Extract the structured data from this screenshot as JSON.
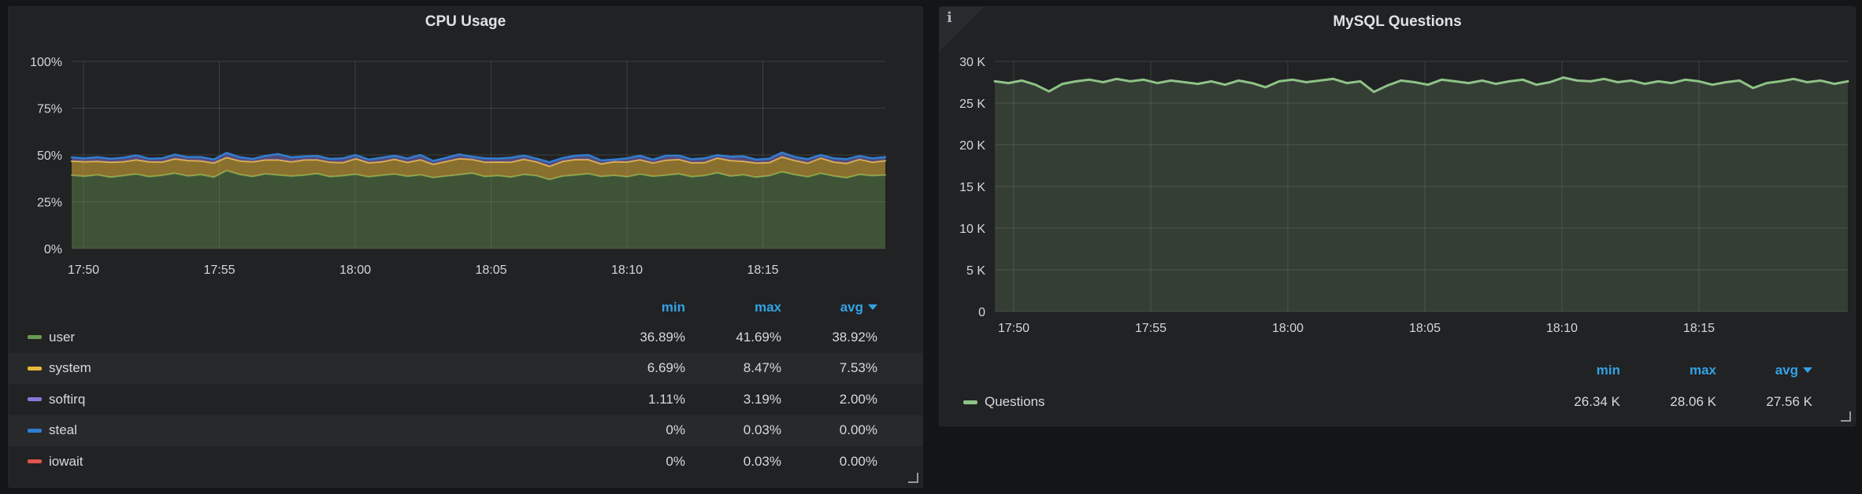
{
  "page": {
    "background": "#141517",
    "panel_background": "#212224"
  },
  "panels": {
    "cpu": {
      "title": "CPU Usage",
      "table": {
        "headers": {
          "min": "min",
          "max": "max",
          "avg": "avg",
          "sort_column": "avg",
          "sort_direction": "desc"
        },
        "rows": [
          {
            "label": "user",
            "color": "#699a52",
            "min": "36.89%",
            "max": "41.69%",
            "avg": "38.92%"
          },
          {
            "label": "system",
            "color": "#eab839",
            "min": "6.69%",
            "max": "8.47%",
            "avg": "7.53%"
          },
          {
            "label": "softirq",
            "color": "#8877d9",
            "min": "1.11%",
            "max": "3.19%",
            "avg": "2.00%"
          },
          {
            "label": "steal",
            "color": "#2f7ed1",
            "min": "0%",
            "max": "0.03%",
            "avg": "0.00%"
          },
          {
            "label": "iowait",
            "color": "#e0544c",
            "min": "0%",
            "max": "0.03%",
            "avg": "0.00%"
          }
        ]
      }
    },
    "mysql": {
      "title": "MySQL Questions",
      "info_icon": "i",
      "table": {
        "headers": {
          "min": "min",
          "max": "max",
          "avg": "avg",
          "sort_column": "avg",
          "sort_direction": "desc"
        },
        "rows": [
          {
            "label": "Questions",
            "color": "#8ec286",
            "min": "26.34 K",
            "max": "28.06 K",
            "avg": "27.56 K"
          }
        ]
      }
    }
  },
  "chart_data": [
    {
      "type": "area",
      "title": "CPU Usage",
      "stacked": true,
      "unit": "percent",
      "grid": true,
      "legend_position": "bottom-table",
      "ylim": [
        0,
        100
      ],
      "y_ticks": [
        "0%",
        "25%",
        "50%",
        "75%",
        "100%"
      ],
      "x_ticks": [
        "17:50",
        "17:55",
        "18:00",
        "18:05",
        "18:10",
        "18:15"
      ],
      "series": [
        {
          "name": "user",
          "color": "#699a52",
          "fill_opacity": 0.42,
          "line_width": 2,
          "min": 36.89,
          "max": 41.69,
          "avg": 38.92,
          "values": [
            39.2,
            38.6,
            39.4,
            38.1,
            39.0,
            39.8,
            38.4,
            39.1,
            40.2,
            38.8,
            39.5,
            38.2,
            41.7,
            39.6,
            38.5,
            39.9,
            39.3,
            38.7,
            39.2,
            40.1,
            38.4,
            38.9,
            39.7,
            38.3,
            39.1,
            39.8,
            38.6,
            39.4,
            37.9,
            38.8,
            39.5,
            40.3,
            38.5,
            39.0,
            38.2,
            39.6,
            38.9,
            36.9,
            38.7,
            39.3,
            40.0,
            38.5,
            39.1,
            38.3,
            39.8,
            38.6,
            39.2,
            39.9,
            38.4,
            39.0,
            40.5,
            38.7,
            39.4,
            38.1,
            38.9,
            41.0,
            39.5,
            38.3,
            40.2,
            38.8,
            37.8,
            39.6,
            38.9,
            39.3
          ]
        },
        {
          "name": "system",
          "color": "#eab839",
          "fill_opacity": 0.52,
          "line_width": 2,
          "min": 6.69,
          "max": 8.47,
          "avg": 7.53,
          "values": [
            7.5,
            7.8,
            7.2,
            8.0,
            7.4,
            7.6,
            7.9,
            7.1,
            7.7,
            8.2,
            7.3,
            7.5,
            6.9,
            7.2,
            7.8,
            7.4,
            8.0,
            7.6,
            8.1,
            7.3,
            7.7,
            7.0,
            8.3,
            7.5,
            7.2,
            7.9,
            7.4,
            8.0,
            7.1,
            7.7,
            8.5,
            7.3,
            7.6,
            7.2,
            7.9,
            8.1,
            7.4,
            7.0,
            7.8,
            8.2,
            7.5,
            6.7,
            7.3,
            7.9,
            7.6,
            7.1,
            8.0,
            7.7,
            7.4,
            6.9,
            7.8,
            8.3,
            7.2,
            7.6,
            7.0,
            7.9,
            7.5,
            7.3,
            8.1,
            7.4,
            7.7,
            8.0,
            7.2,
            7.6
          ]
        },
        {
          "name": "softirq",
          "color": "#8877d9",
          "fill_opacity": 0.48,
          "line_width": 2,
          "min": 1.11,
          "max": 3.19,
          "avg": 2.0,
          "values": [
            2.0,
            1.8,
            2.2,
            1.9,
            2.1,
            2.4,
            1.7,
            2.0,
            2.3,
            1.8,
            2.1,
            1.9,
            2.5,
            2.0,
            1.6,
            2.2,
            3.2,
            2.4,
            1.9,
            2.1,
            1.8,
            2.3,
            2.0,
            1.7,
            2.2,
            1.9,
            2.1,
            2.6,
            1.8,
            2.0,
            2.3,
            1.5,
            2.1,
            1.9,
            2.4,
            2.0,
            1.7,
            2.2,
            1.8,
            2.1,
            2.5,
            1.9,
            1.1,
            2.0,
            2.2,
            1.8,
            2.4,
            2.1,
            1.9,
            2.3,
            1.6,
            2.0,
            2.7,
            1.8,
            2.1,
            2.4,
            1.9,
            2.2,
            1.7,
            2.0,
            2.3,
            1.8,
            2.1,
            1.9
          ]
        },
        {
          "name": "steal",
          "color": "#2f7ed1",
          "fill_opacity": 0,
          "line_width": 2.5,
          "min": 0,
          "max": 0.03,
          "avg": 0.0,
          "values": 0.02
        },
        {
          "name": "iowait",
          "color": "#e0544c",
          "fill_opacity": 0,
          "line_width": 0,
          "min": 0,
          "max": 0.03,
          "avg": 0.0,
          "values": 0
        }
      ]
    },
    {
      "type": "line",
      "title": "MySQL Questions",
      "stacked": false,
      "unit": "short",
      "grid": true,
      "legend_position": "bottom-table",
      "ylim": [
        0,
        30000
      ],
      "y_ticks": [
        "0",
        "5 K",
        "10 K",
        "15 K",
        "20 K",
        "25 K",
        "30 K"
      ],
      "x_ticks": [
        "17:50",
        "17:55",
        "18:00",
        "18:05",
        "18:10",
        "18:15"
      ],
      "series": [
        {
          "name": "Questions",
          "color": "#8ec286",
          "fill_opacity": 0.18,
          "line_width": 3,
          "min": 26340,
          "max": 28060,
          "avg": 27560,
          "values": [
            27600,
            27400,
            27700,
            27200,
            26400,
            27300,
            27600,
            27800,
            27500,
            27900,
            27600,
            27800,
            27400,
            27700,
            27500,
            27300,
            27600,
            27200,
            27700,
            27400,
            26900,
            27600,
            27800,
            27500,
            27700,
            27900,
            27400,
            27600,
            26340,
            27100,
            27700,
            27500,
            27200,
            27800,
            27600,
            27400,
            27700,
            27300,
            27600,
            27800,
            27200,
            27500,
            28060,
            27700,
            27600,
            27900,
            27500,
            27700,
            27300,
            27600,
            27400,
            27800,
            27600,
            27200,
            27500,
            27700,
            26800,
            27400,
            27600,
            27900,
            27500,
            27700,
            27300,
            27600
          ]
        }
      ]
    }
  ]
}
